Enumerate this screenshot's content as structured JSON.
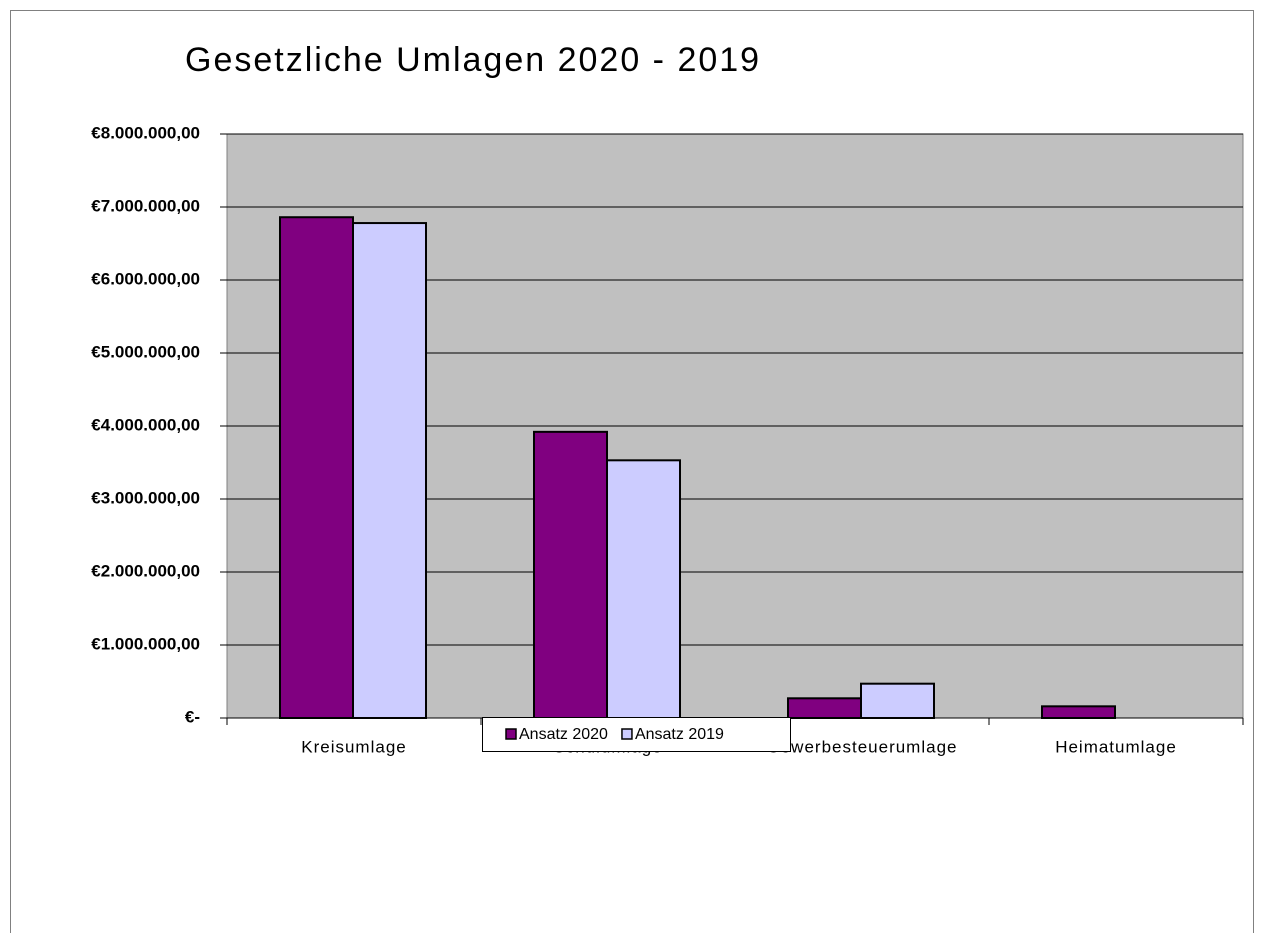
{
  "chart_data": {
    "type": "bar",
    "title": "Gesetzliche Umlagen 2020 - 2019",
    "categories": [
      "Kreisumlage",
      "Schulumlage",
      "Gewerbesteuerumlage",
      "Heimatumlage"
    ],
    "series": [
      {
        "name": "Ansatz 2020",
        "color": "#800080",
        "values": [
          6860000,
          3920000,
          270000,
          160000
        ]
      },
      {
        "name": "Ansatz 2019",
        "color": "#ccccff",
        "values": [
          6780000,
          3530000,
          470000,
          0
        ]
      }
    ],
    "ylim": [
      0,
      8000000
    ],
    "yticks": [
      {
        "value": 0,
        "label": "€-"
      },
      {
        "value": 1000000,
        "label": "€1.000.000,00"
      },
      {
        "value": 2000000,
        "label": "€2.000.000,00"
      },
      {
        "value": 3000000,
        "label": "€3.000.000,00"
      },
      {
        "value": 4000000,
        "label": "€4.000.000,00"
      },
      {
        "value": 5000000,
        "label": "€5.000.000,00"
      },
      {
        "value": 6000000,
        "label": "€6.000.000,00"
      },
      {
        "value": 7000000,
        "label": "€7.000.000,00"
      },
      {
        "value": 8000000,
        "label": "€8.000.000,00"
      }
    ],
    "grid": true,
    "legend": "bottom"
  }
}
